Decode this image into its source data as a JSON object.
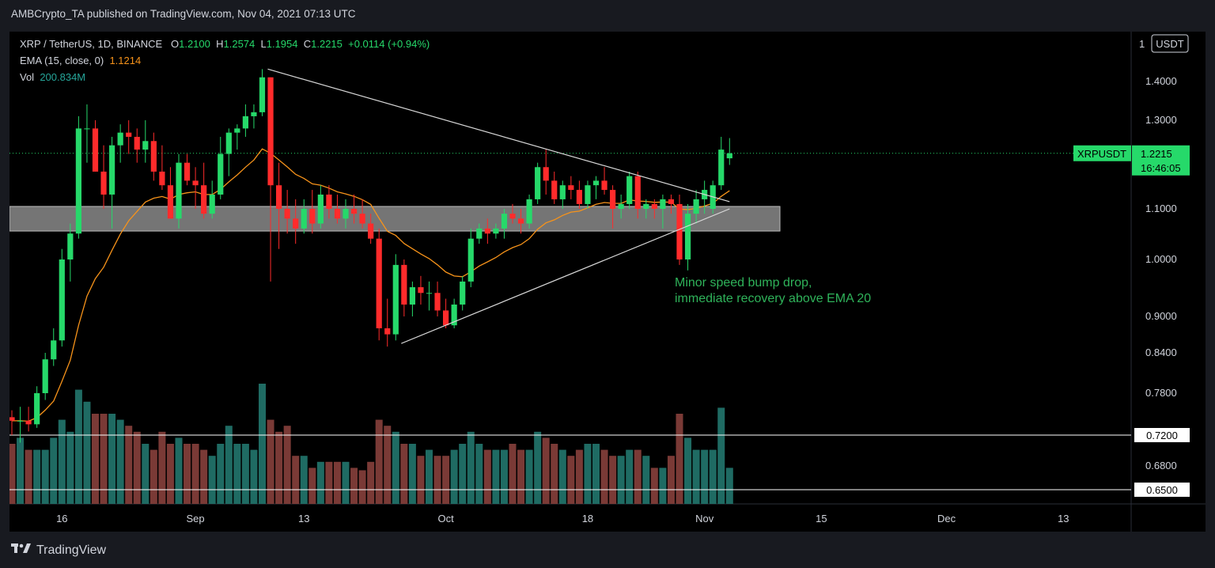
{
  "header": {
    "published_line": "AMBCrypto_TA published on TradingView.com, Nov 04, 2021 07:13 UTC"
  },
  "legend": {
    "symbol": "XRP / TetherUS, 1D, BINANCE",
    "o_label": "O",
    "o": "1.2100",
    "h_label": "H",
    "h": "1.2574",
    "l_label": "L",
    "l": "1.1954",
    "c_label": "C",
    "c": "1.2215",
    "change": "+0.0114 (+0.94%)",
    "ema_label": "EMA (15, close, 0)",
    "ema_value": "1.1214",
    "vol_label": "Vol",
    "vol_value": "200.834M"
  },
  "price_axis": {
    "currency": "USDT",
    "top_tick": "1"
  },
  "last_price": {
    "ticker": "XRPUSDT",
    "price": "1.2215",
    "countdown": "16:46:05"
  },
  "hlines": [
    {
      "label": "0.7200",
      "value": 0.72
    },
    {
      "label": "0.6500",
      "value": 0.65
    }
  ],
  "annotation": [
    "Minor speed bump drop,",
    "immediate recovery above EMA 20"
  ],
  "footer": {
    "brand": "TradingView"
  },
  "colors": {
    "up": "#26d96a",
    "down": "#ff2b2b",
    "vol_up": "#1f6b63",
    "vol_down": "#7a3a36",
    "ema": "#f7931a",
    "zone": "#8a8a8a",
    "annotation": "#2fb35a",
    "trendline": "#d8d8d8"
  },
  "chart_data": {
    "type": "candlestick",
    "x_tick_labels": [
      "16",
      "Sep",
      "13",
      "Oct",
      "18",
      "Nov",
      "15",
      "Dec",
      "13"
    ],
    "x_ticks_day_index": [
      6,
      22,
      35,
      52,
      69,
      83,
      97,
      112,
      126
    ],
    "y_ticks": [
      1.4,
      1.3,
      1.1,
      1.0,
      0.9,
      0.84,
      0.78,
      0.68
    ],
    "support_zone": [
      1.055,
      1.105
    ],
    "trendlines": [
      {
        "from": [
          "Sep 07",
          1.43
        ],
        "to": [
          "Nov 01",
          1.11
        ]
      },
      {
        "from": [
          "Sep 22",
          0.855
        ],
        "to": [
          "Nov 01",
          1.1
        ]
      }
    ],
    "candles": [
      [
        0.745,
        0.755,
        0.72,
        0.74
      ],
      [
        0.74,
        0.76,
        0.71,
        0.74
      ],
      [
        0.74,
        0.76,
        0.725,
        0.735
      ],
      [
        0.735,
        0.79,
        0.73,
        0.78
      ],
      [
        0.78,
        0.84,
        0.77,
        0.83
      ],
      [
        0.83,
        0.88,
        0.82,
        0.86
      ],
      [
        0.86,
        1.02,
        0.85,
        1.0
      ],
      [
        1.0,
        1.07,
        0.96,
        1.05
      ],
      [
        1.05,
        1.31,
        1.04,
        1.28
      ],
      [
        1.28,
        1.34,
        1.2,
        1.28
      ],
      [
        1.28,
        1.3,
        1.18,
        1.18
      ],
      [
        1.18,
        1.24,
        1.1,
        1.13
      ],
      [
        1.13,
        1.26,
        1.06,
        1.24
      ],
      [
        1.24,
        1.29,
        1.2,
        1.27
      ],
      [
        1.27,
        1.3,
        1.22,
        1.26
      ],
      [
        1.26,
        1.28,
        1.2,
        1.23
      ],
      [
        1.23,
        1.3,
        1.2,
        1.25
      ],
      [
        1.25,
        1.27,
        1.16,
        1.18
      ],
      [
        1.18,
        1.24,
        1.14,
        1.15
      ],
      [
        1.15,
        1.19,
        1.08,
        1.08
      ],
      [
        1.08,
        1.22,
        1.06,
        1.2
      ],
      [
        1.2,
        1.22,
        1.15,
        1.16
      ],
      [
        1.16,
        1.19,
        1.1,
        1.15
      ],
      [
        1.15,
        1.2,
        1.08,
        1.09
      ],
      [
        1.09,
        1.16,
        1.08,
        1.13
      ],
      [
        1.13,
        1.26,
        1.12,
        1.22
      ],
      [
        1.22,
        1.28,
        1.17,
        1.27
      ],
      [
        1.27,
        1.29,
        1.23,
        1.28
      ],
      [
        1.28,
        1.34,
        1.26,
        1.31
      ],
      [
        1.31,
        1.34,
        1.28,
        1.32
      ],
      [
        1.32,
        1.43,
        1.31,
        1.41
      ],
      [
        1.41,
        1.41,
        0.96,
        1.15
      ],
      [
        1.15,
        1.2,
        1.02,
        1.1
      ],
      [
        1.1,
        1.14,
        1.05,
        1.08
      ],
      [
        1.08,
        1.12,
        1.03,
        1.06
      ],
      [
        1.06,
        1.12,
        1.05,
        1.1
      ],
      [
        1.1,
        1.14,
        1.05,
        1.07
      ],
      [
        1.07,
        1.15,
        1.06,
        1.13
      ],
      [
        1.13,
        1.15,
        1.08,
        1.1
      ],
      [
        1.1,
        1.13,
        1.07,
        1.08
      ],
      [
        1.08,
        1.12,
        1.06,
        1.1
      ],
      [
        1.1,
        1.13,
        1.07,
        1.09
      ],
      [
        1.09,
        1.12,
        1.06,
        1.07
      ],
      [
        1.07,
        1.09,
        1.03,
        1.04
      ],
      [
        1.04,
        1.06,
        0.86,
        0.88
      ],
      [
        0.88,
        0.93,
        0.85,
        0.87
      ],
      [
        0.87,
        1.01,
        0.86,
        0.99
      ],
      [
        0.99,
        1.0,
        0.9,
        0.92
      ],
      [
        0.92,
        0.96,
        0.9,
        0.95
      ],
      [
        0.95,
        0.97,
        0.92,
        0.94
      ],
      [
        0.94,
        0.96,
        0.91,
        0.94
      ],
      [
        0.94,
        0.96,
        0.9,
        0.91
      ],
      [
        0.91,
        0.93,
        0.88,
        0.885
      ],
      [
        0.885,
        0.93,
        0.88,
        0.92
      ],
      [
        0.92,
        0.97,
        0.91,
        0.96
      ],
      [
        0.96,
        1.06,
        0.95,
        1.04
      ],
      [
        1.04,
        1.07,
        1.03,
        1.06
      ],
      [
        1.06,
        1.08,
        1.03,
        1.05
      ],
      [
        1.05,
        1.07,
        1.04,
        1.06
      ],
      [
        1.06,
        1.1,
        1.04,
        1.09
      ],
      [
        1.09,
        1.11,
        1.07,
        1.08
      ],
      [
        1.08,
        1.1,
        1.05,
        1.07
      ],
      [
        1.07,
        1.13,
        1.06,
        1.12
      ],
      [
        1.12,
        1.2,
        1.11,
        1.19
      ],
      [
        1.19,
        1.23,
        1.13,
        1.16
      ],
      [
        1.16,
        1.18,
        1.11,
        1.12
      ],
      [
        1.12,
        1.16,
        1.1,
        1.15
      ],
      [
        1.15,
        1.17,
        1.12,
        1.14
      ],
      [
        1.14,
        1.16,
        1.1,
        1.11
      ],
      [
        1.11,
        1.16,
        1.1,
        1.15
      ],
      [
        1.15,
        1.17,
        1.12,
        1.16
      ],
      [
        1.16,
        1.19,
        1.13,
        1.14
      ],
      [
        1.14,
        1.15,
        1.06,
        1.1
      ],
      [
        1.1,
        1.13,
        1.08,
        1.11
      ],
      [
        1.11,
        1.18,
        1.1,
        1.17
      ],
      [
        1.17,
        1.18,
        1.08,
        1.1
      ],
      [
        1.1,
        1.12,
        1.08,
        1.11
      ],
      [
        1.11,
        1.12,
        1.08,
        1.1
      ],
      [
        1.1,
        1.13,
        1.06,
        1.12
      ],
      [
        1.12,
        1.13,
        1.09,
        1.11
      ],
      [
        1.11,
        1.13,
        0.99,
        1.0
      ],
      [
        1.0,
        1.11,
        0.98,
        1.09
      ],
      [
        1.09,
        1.14,
        1.07,
        1.12
      ],
      [
        1.12,
        1.16,
        1.09,
        1.14
      ],
      [
        1.1,
        1.16,
        1.09,
        1.15
      ],
      [
        1.15,
        1.26,
        1.14,
        1.23
      ],
      [
        1.21,
        1.257,
        1.195,
        1.2215
      ]
    ],
    "candle_format": [
      "open",
      "high",
      "low",
      "close"
    ],
    "ema_period": 15,
    "volume_relative": [
      0.5,
      0.55,
      0.45,
      0.45,
      0.45,
      0.55,
      0.7,
      0.6,
      0.95,
      0.85,
      0.75,
      0.75,
      0.75,
      0.7,
      0.65,
      0.6,
      0.5,
      0.45,
      0.6,
      0.5,
      0.55,
      0.5,
      0.5,
      0.45,
      0.4,
      0.5,
      0.65,
      0.5,
      0.5,
      0.45,
      1.0,
      0.7,
      0.6,
      0.65,
      0.4,
      0.4,
      0.3,
      0.35,
      0.35,
      0.35,
      0.35,
      0.3,
      0.28,
      0.35,
      0.7,
      0.65,
      0.6,
      0.5,
      0.5,
      0.4,
      0.45,
      0.4,
      0.4,
      0.45,
      0.5,
      0.6,
      0.5,
      0.45,
      0.45,
      0.45,
      0.5,
      0.45,
      0.45,
      0.6,
      0.55,
      0.5,
      0.45,
      0.4,
      0.45,
      0.5,
      0.5,
      0.45,
      0.4,
      0.4,
      0.45,
      0.45,
      0.4,
      0.3,
      0.3,
      0.4,
      0.75,
      0.55,
      0.45,
      0.45,
      0.45,
      0.8,
      0.3
    ]
  }
}
